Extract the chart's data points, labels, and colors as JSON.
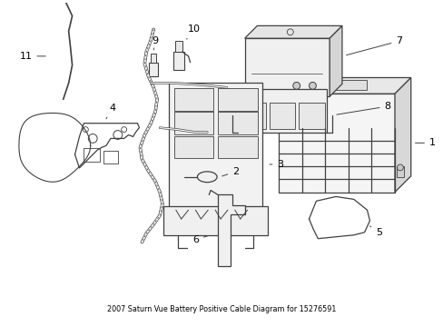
{
  "title": "2007 Saturn Vue Battery Positive Cable Diagram for 15276591",
  "background_color": "#ffffff",
  "line_color": "#404040",
  "text_color": "#000000",
  "fig_width": 4.89,
  "fig_height": 3.6,
  "dpi": 100
}
